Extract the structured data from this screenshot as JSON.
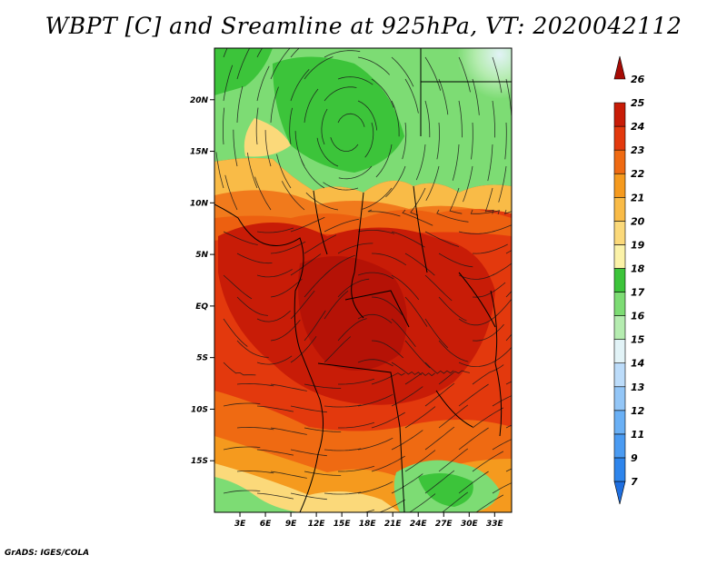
{
  "title": "WBPT [C] and Sreamline at 925hPa, VT: 2020042112",
  "footer": "GrADS: IGES/COLA",
  "map": {
    "lon_range": [
      0,
      35
    ],
    "lat_range": [
      -20,
      25
    ],
    "x_ticks": [
      {
        "value": 3,
        "label": "3E"
      },
      {
        "value": 6,
        "label": "6E"
      },
      {
        "value": 9,
        "label": "9E"
      },
      {
        "value": 12,
        "label": "12E"
      },
      {
        "value": 15,
        "label": "15E"
      },
      {
        "value": 18,
        "label": "18E"
      },
      {
        "value": 21,
        "label": "21E"
      },
      {
        "value": 24,
        "label": "24E"
      },
      {
        "value": 27,
        "label": "27E"
      },
      {
        "value": 30,
        "label": "30E"
      },
      {
        "value": 33,
        "label": "33E"
      }
    ],
    "y_ticks": [
      {
        "value": 20,
        "label": "20N"
      },
      {
        "value": 15,
        "label": "15N"
      },
      {
        "value": 10,
        "label": "10N"
      },
      {
        "value": 5,
        "label": "5N"
      },
      {
        "value": 0,
        "label": "EQ"
      },
      {
        "value": -5,
        "label": "5S"
      },
      {
        "value": -10,
        "label": "10S"
      },
      {
        "value": -15,
        "label": "15S"
      }
    ]
  },
  "colorbar": {
    "levels": [
      {
        "label": "7",
        "color": "#1f6fe0"
      },
      {
        "label": "9",
        "color": "#2e85ec"
      },
      {
        "label": "11",
        "color": "#4a9bf2"
      },
      {
        "label": "12",
        "color": "#6ab0f5"
      },
      {
        "label": "13",
        "color": "#93c6f7"
      },
      {
        "label": "14",
        "color": "#bcdcfa"
      },
      {
        "label": "15",
        "color": "#e2f3f7"
      },
      {
        "label": "16",
        "color": "#b5ecb0"
      },
      {
        "label": "17",
        "color": "#7ddc74"
      },
      {
        "label": "18",
        "color": "#3cc43a"
      },
      {
        "label": "19",
        "color": "#fbf2a8"
      },
      {
        "label": "20",
        "color": "#fbd97a"
      },
      {
        "label": "21",
        "color": "#f9bb47"
      },
      {
        "label": "22",
        "color": "#f59a1e"
      },
      {
        "label": "23",
        "color": "#ef6a12"
      },
      {
        "label": "24",
        "color": "#e3390d"
      },
      {
        "label": "25",
        "color": "#c81c07"
      },
      {
        "label": "26",
        "color": "#a60b05"
      }
    ]
  }
}
